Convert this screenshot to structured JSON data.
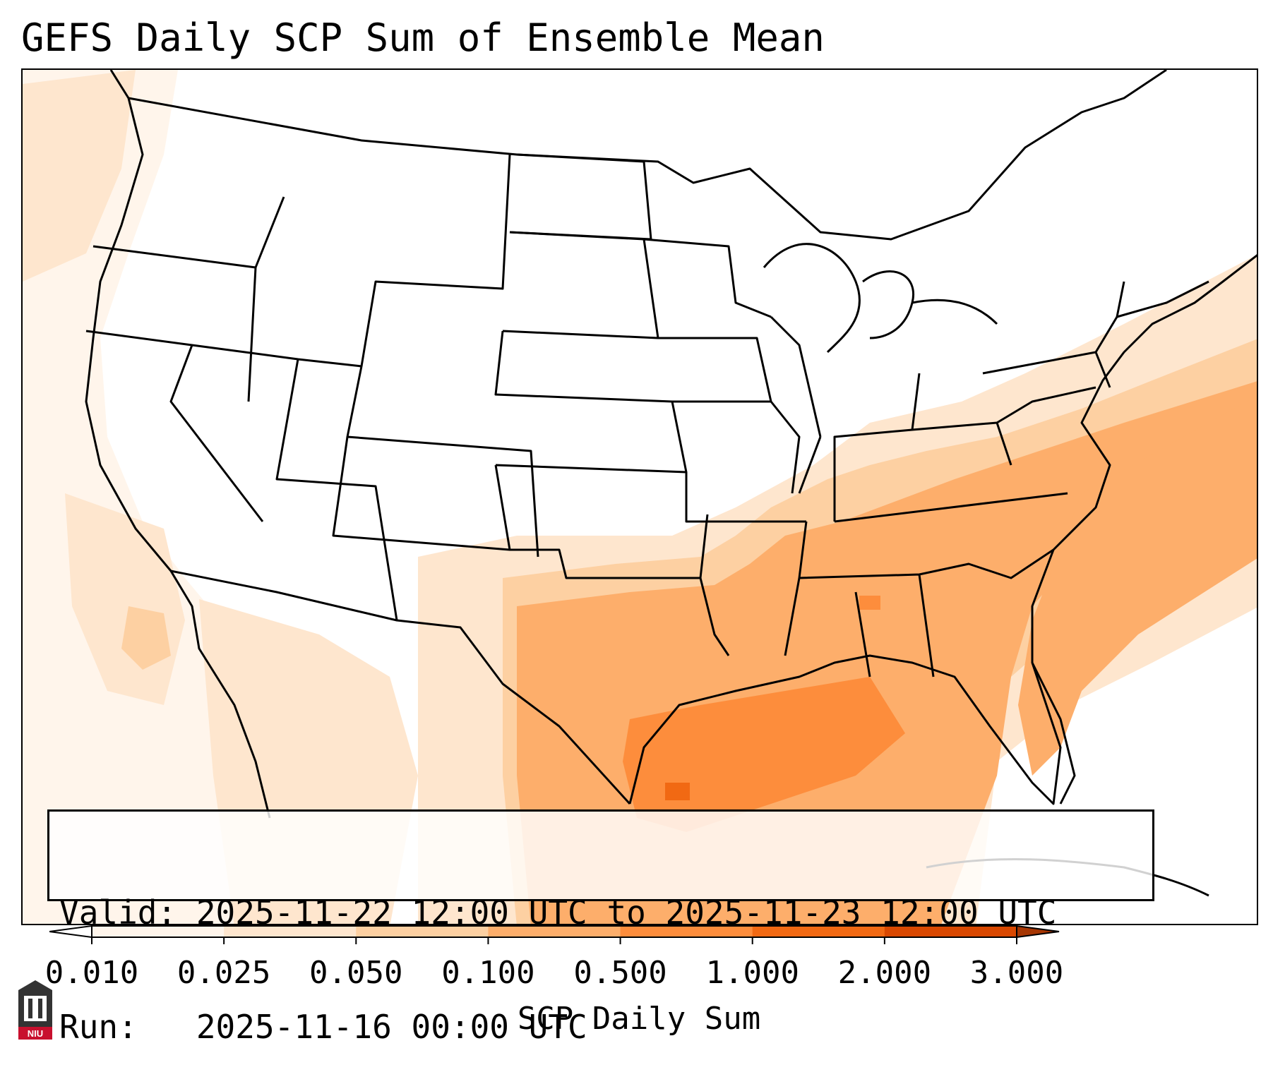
{
  "title": "GEFS Daily SCP Sum of Ensemble Mean",
  "info": {
    "valid_line": "Valid: 2025-11-22 12:00 UTC to 2025-11-23 12:00 UTC",
    "run_line": "Run:   2025-11-16 00:00 UTC"
  },
  "colorbar": {
    "label": "SCP Daily Sum",
    "ticks": [
      "0.010",
      "0.025",
      "0.050",
      "0.100",
      "0.500",
      "1.000",
      "2.000",
      "3.000"
    ],
    "colors": [
      "#fff5eb",
      "#fee6ce",
      "#fdd0a2",
      "#fdae6b",
      "#fd8d3c",
      "#f16913",
      "#d94801"
    ],
    "under_color": "#ffffff",
    "over_color": "#a63603"
  },
  "logo": {
    "text": "NIU"
  },
  "colors": {
    "frame": "#000000",
    "borders": "#000000"
  }
}
